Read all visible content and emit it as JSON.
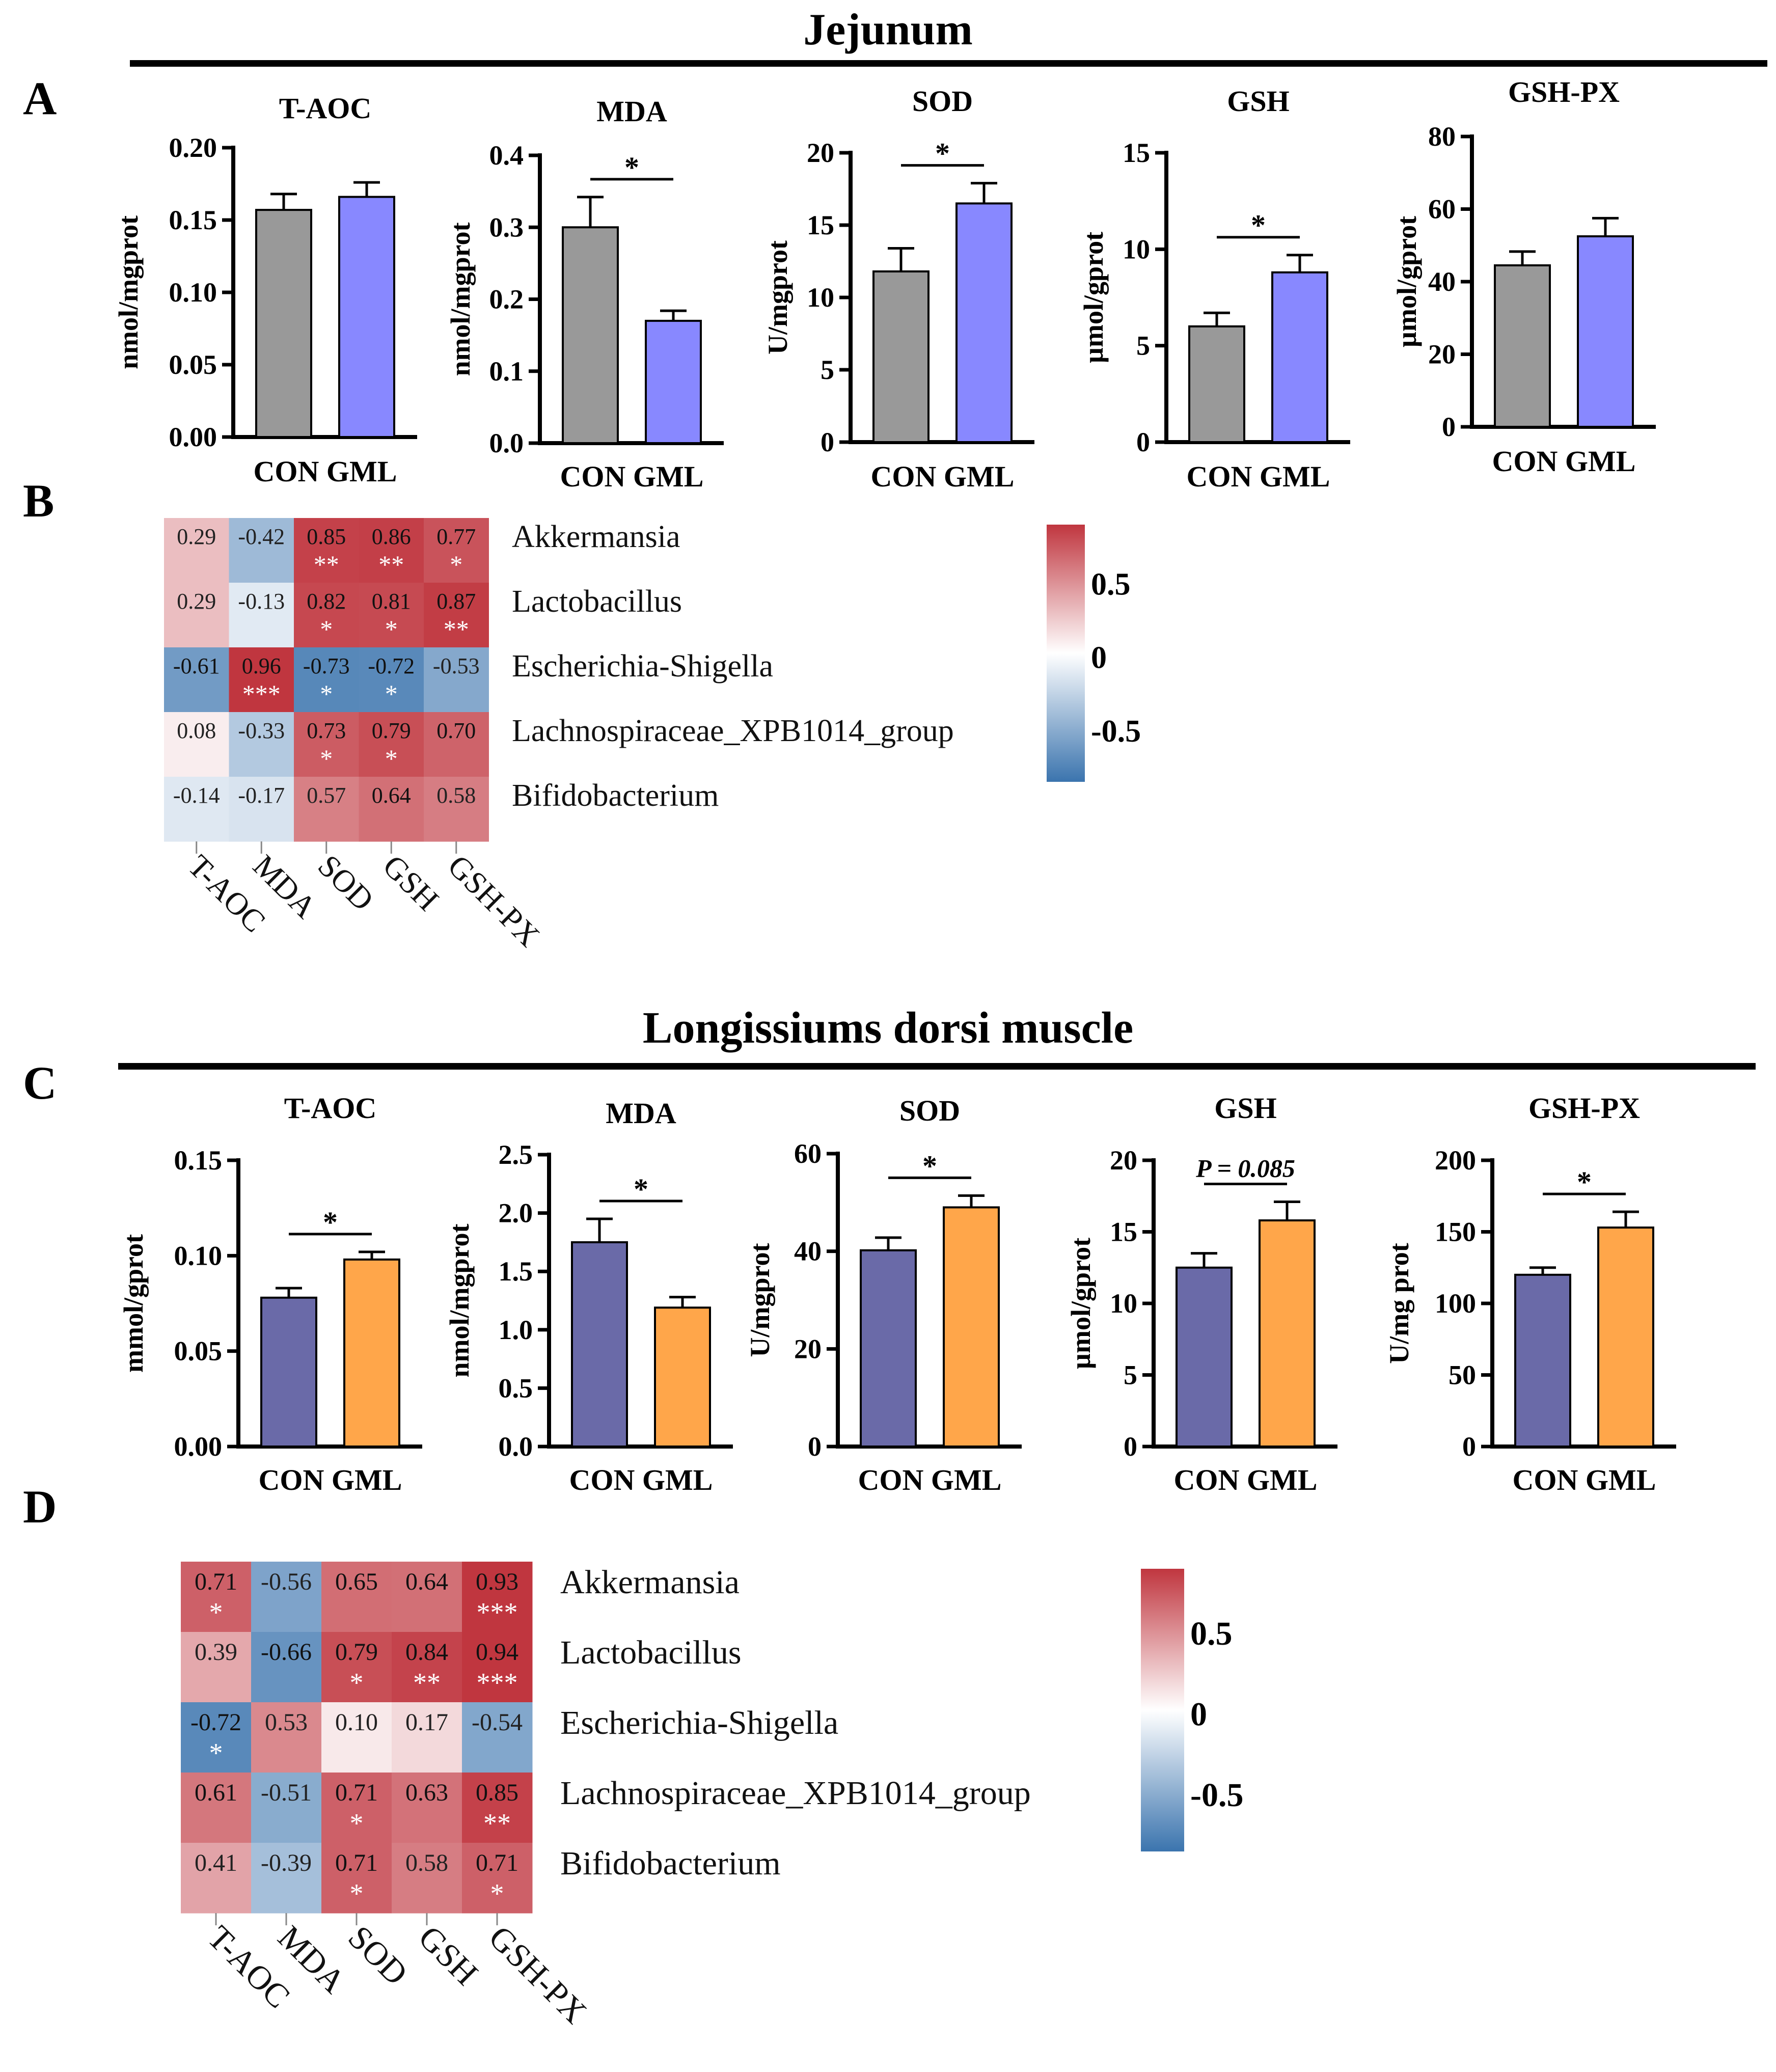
{
  "sections": {
    "jejunum_title": "Jejunum",
    "muscle_title": "Longissiums dorsi muscle"
  },
  "panel_labels": {
    "a": "A",
    "b": "B",
    "c": "C",
    "d": "D"
  },
  "colors": {
    "con_a": "#999999",
    "gml_a": "#8888ff",
    "con_c": "#6a6aa8",
    "gml_c": "#ffa64a",
    "heat_pos": "#c0363f",
    "heat_neg": "#3b74ae",
    "heat_mid": "#ffffff"
  },
  "chart_data": [
    {
      "id": "A1",
      "type": "bar",
      "title": "T-AOC",
      "categories": [
        "CON",
        "GML"
      ],
      "values": [
        0.157,
        0.166
      ],
      "errors": [
        0.011,
        0.01
      ],
      "ylabel": "nmol/mgprot",
      "ylim": [
        0,
        0.2
      ],
      "yticks": [
        "0.00",
        "0.05",
        "0.10",
        "0.15",
        "0.20"
      ],
      "sig": ""
    },
    {
      "id": "A2",
      "type": "bar",
      "title": "MDA",
      "categories": [
        "CON",
        "GML"
      ],
      "values": [
        0.3,
        0.17
      ],
      "errors": [
        0.042,
        0.014
      ],
      "ylabel": "nmol/mgprot",
      "ylim": [
        0,
        0.4
      ],
      "yticks": [
        "0.0",
        "0.1",
        "0.2",
        "0.3",
        "0.4"
      ],
      "sig": "*"
    },
    {
      "id": "A3",
      "type": "bar",
      "title": "SOD",
      "categories": [
        "CON",
        "GML"
      ],
      "values": [
        11.8,
        16.5
      ],
      "errors": [
        1.6,
        1.4
      ],
      "ylabel": "U/mgprot",
      "ylim": [
        0,
        20
      ],
      "yticks": [
        "0",
        "5",
        "10",
        "15",
        "20"
      ],
      "sig": "*"
    },
    {
      "id": "A4",
      "type": "bar",
      "title": "GSH",
      "categories": [
        "CON",
        "GML"
      ],
      "values": [
        6.0,
        8.8
      ],
      "errors": [
        0.7,
        0.9
      ],
      "ylabel": "µmol/gprot",
      "ylim": [
        0,
        15
      ],
      "yticks": [
        "0",
        "5",
        "10",
        "15"
      ],
      "sig": "*"
    },
    {
      "id": "A5",
      "type": "bar",
      "title": "GSH-PX",
      "categories": [
        "CON",
        "GML"
      ],
      "values": [
        44.5,
        52.5
      ],
      "errors": [
        3.8,
        5.0
      ],
      "ylabel": "µmol/gprot",
      "ylim": [
        0,
        80
      ],
      "yticks": [
        "0",
        "20",
        "40",
        "60",
        "80"
      ],
      "sig": ""
    },
    {
      "id": "C1",
      "type": "bar",
      "title": "T-AOC",
      "categories": [
        "CON",
        "GML"
      ],
      "values": [
        0.078,
        0.098
      ],
      "errors": [
        0.005,
        0.004
      ],
      "ylabel": "mmol/gprot",
      "ylim": [
        0,
        0.15
      ],
      "yticks": [
        "0.00",
        "0.05",
        "0.10",
        "0.15"
      ],
      "sig": "*"
    },
    {
      "id": "C2",
      "type": "bar",
      "title": "MDA",
      "categories": [
        "CON",
        "GML"
      ],
      "values": [
        1.75,
        1.19
      ],
      "errors": [
        0.2,
        0.09
      ],
      "ylabel": "nmol/mgprot",
      "ylim": [
        0,
        2.5
      ],
      "yticks": [
        "0.0",
        "0.5",
        "1.0",
        "1.5",
        "2.0",
        "2.5"
      ],
      "sig": "*"
    },
    {
      "id": "C3",
      "type": "bar",
      "title": "SOD",
      "categories": [
        "CON",
        "GML"
      ],
      "values": [
        40.2,
        49.0
      ],
      "errors": [
        2.6,
        2.4
      ],
      "ylabel": "U/mgprot",
      "ylim": [
        0,
        60
      ],
      "yticks": [
        "0",
        "20",
        "40",
        "60"
      ],
      "sig": "*"
    },
    {
      "id": "C4",
      "type": "bar",
      "title": "GSH",
      "categories": [
        "CON",
        "GML"
      ],
      "values": [
        12.5,
        15.8
      ],
      "errors": [
        1.0,
        1.3
      ],
      "ylabel": "µmol/gprot",
      "ylim": [
        0,
        20
      ],
      "yticks": [
        "0",
        "5",
        "10",
        "15",
        "20"
      ],
      "sig": "P = 0.085"
    },
    {
      "id": "C5",
      "type": "bar",
      "title": "GSH-PX",
      "categories": [
        "CON",
        "GML"
      ],
      "values": [
        120,
        153
      ],
      "errors": [
        5,
        11
      ],
      "ylabel": "U/mg prot",
      "ylim": [
        0,
        200
      ],
      "yticks": [
        "0",
        "50",
        "100",
        "150",
        "200"
      ],
      "sig": "*"
    },
    {
      "id": "B",
      "type": "heatmap",
      "columns": [
        "T-AOC",
        "MDA",
        "SOD",
        "GSH",
        "GSH-PX"
      ],
      "rows": [
        "Akkermansia",
        "Lactobacillus",
        "Escherichia-Shigella",
        "Lachnospiraceae_XPB1014_group",
        "Bifidobacterium"
      ],
      "values": [
        [
          0.29,
          -0.42,
          0.85,
          0.86,
          0.77
        ],
        [
          0.29,
          -0.13,
          0.82,
          0.81,
          0.87
        ],
        [
          -0.61,
          0.96,
          -0.73,
          -0.72,
          -0.53
        ],
        [
          0.08,
          -0.33,
          0.73,
          0.79,
          0.7
        ],
        [
          -0.14,
          -0.17,
          0.57,
          0.64,
          0.58
        ]
      ],
      "labels": [
        [
          "0.29",
          "-0.42",
          "0.85",
          "0.86",
          "0.77"
        ],
        [
          "0.29",
          "-0.13",
          "0.82",
          "0.81",
          "0.87"
        ],
        [
          "-0.61",
          "0.96",
          "-0.73",
          "-0.72",
          "-0.53"
        ],
        [
          "0.08",
          "-0.33",
          "0.73",
          "0.79",
          "0.70"
        ],
        [
          "-0.14",
          "-0.17",
          "0.57",
          "0.64",
          "0.58"
        ]
      ],
      "stars": [
        [
          "",
          "",
          "**",
          "**",
          "*"
        ],
        [
          "",
          "",
          "*",
          "*",
          "**"
        ],
        [
          "",
          "***",
          "*",
          "*",
          ""
        ],
        [
          "",
          "",
          "*",
          "*",
          ""
        ],
        [
          "",
          "",
          "",
          "",
          ""
        ]
      ],
      "colorbar_ticks": [
        "0.5",
        "0",
        "-0.5"
      ],
      "colorbar_range": [
        -0.85,
        0.9
      ]
    },
    {
      "id": "D",
      "type": "heatmap",
      "columns": [
        "T-AOC",
        "MDA",
        "SOD",
        "GSH",
        "GSH-PX"
      ],
      "rows": [
        "Akkermansia",
        "Lactobacillus",
        "Escherichia-Shigella",
        "Lachnospiraceae_XPB1014_group",
        "Bifidobacterium"
      ],
      "values": [
        [
          0.71,
          -0.56,
          0.65,
          0.64,
          0.93
        ],
        [
          0.39,
          -0.66,
          0.79,
          0.84,
          0.94
        ],
        [
          -0.72,
          0.53,
          0.1,
          0.17,
          -0.54
        ],
        [
          0.61,
          -0.51,
          0.71,
          0.63,
          0.85
        ],
        [
          0.41,
          -0.39,
          0.71,
          0.58,
          0.71
        ]
      ],
      "labels": [
        [
          "0.71",
          "-0.56",
          "0.65",
          "0.64",
          "0.93"
        ],
        [
          "0.39",
          "-0.66",
          "0.79",
          "0.84",
          "0.94"
        ],
        [
          "-0.72",
          "0.53",
          "0.10",
          "0.17",
          "-0.54"
        ],
        [
          "0.61",
          "-0.51",
          "0.71",
          "0.63",
          "0.85"
        ],
        [
          "0.41",
          "-0.39",
          "0.71",
          "0.58",
          "0.71"
        ]
      ],
      "stars": [
        [
          "*",
          "",
          "",
          "",
          "***"
        ],
        [
          "",
          "",
          "*",
          "**",
          "***"
        ],
        [
          "*",
          "",
          "",
          "",
          ""
        ],
        [
          "",
          "",
          "*",
          "",
          "**"
        ],
        [
          "",
          "",
          "*",
          "",
          "*"
        ]
      ],
      "colorbar_ticks": [
        "0.5",
        "0",
        "-0.5"
      ],
      "colorbar_range": [
        -0.85,
        0.9
      ]
    }
  ]
}
